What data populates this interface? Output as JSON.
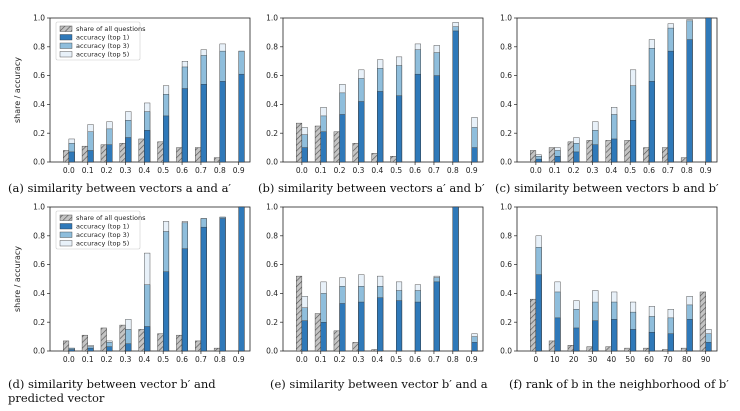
{
  "legend_labels": [
    "share of all questions",
    "accuracy (top 1)",
    "accuracy (top 3)",
    "accuracy (top 5)"
  ],
  "colors": {
    "share": "#bdbdbd",
    "top1": "#2f79b9",
    "top3": "#8fbedc",
    "top5": "#e8f1f9",
    "edge": "#333333"
  },
  "chart_data": [
    {
      "type": "bar",
      "caption": "(a) similarity between vectors a and a′",
      "ylabel": "share / accuracy",
      "categories": [
        "0.0",
        "0.1",
        "0.2",
        "0.3",
        "0.4",
        "0.5",
        "0.6",
        "0.7",
        "0.8",
        "0.9"
      ],
      "ylim": [
        0,
        1.0
      ],
      "yticks": [
        "0.0",
        "0.2",
        "0.4",
        "0.6",
        "0.8",
        "1.0"
      ],
      "series": [
        {
          "name": "share of all questions",
          "values": [
            0.08,
            0.11,
            0.12,
            0.13,
            0.16,
            0.14,
            0.1,
            0.1,
            0.03,
            0.0
          ]
        },
        {
          "name": "accuracy (top 1)",
          "values": [
            0.07,
            0.08,
            0.12,
            0.17,
            0.22,
            0.32,
            0.51,
            0.54,
            0.56,
            0.61
          ]
        },
        {
          "name": "accuracy (top 3)",
          "values": [
            0.13,
            0.21,
            0.23,
            0.29,
            0.35,
            0.47,
            0.66,
            0.74,
            0.77,
            0.77
          ]
        },
        {
          "name": "accuracy (top 5)",
          "values": [
            0.16,
            0.26,
            0.28,
            0.35,
            0.41,
            0.53,
            0.7,
            0.78,
            0.82,
            0.77
          ]
        }
      ]
    },
    {
      "type": "bar",
      "caption": "(b) similarity between vectors a′ and b′",
      "ylabel": "",
      "categories": [
        "0.0",
        "0.1",
        "0.2",
        "0.3",
        "0.4",
        "0.5",
        "0.6",
        "0.7",
        "0.8",
        "0.9"
      ],
      "ylim": [
        0,
        1.0
      ],
      "yticks": [
        "0.0",
        "0.2",
        "0.4",
        "0.6",
        "0.8",
        "1.0"
      ],
      "series": [
        {
          "name": "share of all questions",
          "values": [
            0.27,
            0.25,
            0.21,
            0.13,
            0.06,
            0.04,
            0.0,
            0.0,
            0.0,
            0.0
          ]
        },
        {
          "name": "accuracy (top 1)",
          "values": [
            0.1,
            0.21,
            0.33,
            0.42,
            0.49,
            0.46,
            0.61,
            0.6,
            0.91,
            0.1
          ]
        },
        {
          "name": "accuracy (top 3)",
          "values": [
            0.19,
            0.32,
            0.48,
            0.58,
            0.65,
            0.67,
            0.78,
            0.76,
            0.94,
            0.24
          ]
        },
        {
          "name": "accuracy (top 5)",
          "values": [
            0.24,
            0.38,
            0.54,
            0.64,
            0.71,
            0.73,
            0.82,
            0.81,
            0.97,
            0.31
          ]
        }
      ]
    },
    {
      "type": "bar",
      "caption": "(c) similarity between vectors b and b′",
      "ylabel": "",
      "categories": [
        "0.0",
        "0.1",
        "0.2",
        "0.3",
        "0.4",
        "0.5",
        "0.6",
        "0.7",
        "0.8",
        "0.9"
      ],
      "ylim": [
        0,
        1.0
      ],
      "yticks": [
        "0.0",
        "0.2",
        "0.4",
        "0.6",
        "0.8",
        "1.0"
      ],
      "series": [
        {
          "name": "share of all questions",
          "values": [
            0.08,
            0.1,
            0.14,
            0.15,
            0.15,
            0.15,
            0.1,
            0.1,
            0.03,
            0.0
          ]
        },
        {
          "name": "accuracy (top 1)",
          "values": [
            0.02,
            0.04,
            0.07,
            0.12,
            0.16,
            0.29,
            0.56,
            0.77,
            0.85,
            1.0
          ]
        },
        {
          "name": "accuracy (top 3)",
          "values": [
            0.04,
            0.08,
            0.13,
            0.22,
            0.33,
            0.53,
            0.79,
            0.93,
            0.98,
            1.0
          ]
        },
        {
          "name": "accuracy (top 5)",
          "values": [
            0.05,
            0.1,
            0.17,
            0.28,
            0.38,
            0.64,
            0.85,
            0.96,
            0.99,
            1.0
          ]
        }
      ]
    },
    {
      "type": "bar",
      "caption": "(d) similarity between vector b′ and predicted vector",
      "ylabel": "share / accuracy",
      "categories": [
        "0.0",
        "0.1",
        "0.2",
        "0.3",
        "0.4",
        "0.5",
        "0.6",
        "0.7",
        "0.8",
        "0.9"
      ],
      "ylim": [
        0,
        1.0
      ],
      "yticks": [
        "0.0",
        "0.2",
        "0.4",
        "0.6",
        "0.8",
        "1.0"
      ],
      "series": [
        {
          "name": "share of all questions",
          "values": [
            0.07,
            0.11,
            0.16,
            0.18,
            0.15,
            0.12,
            0.11,
            0.07,
            0.02,
            0.0
          ]
        },
        {
          "name": "accuracy (top 1)",
          "values": [
            0.01,
            0.02,
            0.03,
            0.05,
            0.17,
            0.55,
            0.71,
            0.86,
            0.92,
            1.0
          ]
        },
        {
          "name": "accuracy (top 3)",
          "values": [
            0.02,
            0.03,
            0.06,
            0.15,
            0.46,
            0.83,
            0.89,
            0.92,
            0.93,
            1.0
          ]
        },
        {
          "name": "accuracy (top 5)",
          "values": [
            0.02,
            0.04,
            0.07,
            0.22,
            0.68,
            0.9,
            0.9,
            0.92,
            0.93,
            1.0
          ]
        }
      ]
    },
    {
      "type": "bar",
      "caption": "(e) similarity between vector b′ and a",
      "ylabel": "",
      "categories": [
        "0.0",
        "0.1",
        "0.2",
        "0.3",
        "0.4",
        "0.5",
        "0.6",
        "0.7",
        "0.8",
        "0.9"
      ],
      "ylim": [
        0,
        1.0
      ],
      "yticks": [
        "0.0",
        "0.2",
        "0.4",
        "0.6",
        "0.8",
        "1.0"
      ],
      "series": [
        {
          "name": "share of all questions",
          "values": [
            0.52,
            0.26,
            0.14,
            0.06,
            0.01,
            0.0,
            0.0,
            0.0,
            0.0,
            0.0
          ]
        },
        {
          "name": "accuracy (top 1)",
          "values": [
            0.21,
            0.2,
            0.33,
            0.34,
            0.37,
            0.35,
            0.34,
            0.48,
            1.0,
            0.06
          ]
        },
        {
          "name": "accuracy (top 3)",
          "values": [
            0.3,
            0.4,
            0.45,
            0.45,
            0.45,
            0.42,
            0.42,
            0.51,
            1.0,
            0.1
          ]
        },
        {
          "name": "accuracy (top 5)",
          "values": [
            0.38,
            0.48,
            0.51,
            0.53,
            0.52,
            0.48,
            0.46,
            0.52,
            1.0,
            0.12
          ]
        }
      ]
    },
    {
      "type": "bar",
      "caption": "(f) rank of b in the neighborhood of b′",
      "ylabel": "",
      "categories": [
        "0",
        "10",
        "20",
        "30",
        "40",
        "50",
        "60",
        "70",
        "80",
        "90"
      ],
      "ylim": [
        0,
        1.0
      ],
      "yticks": [
        "0.0",
        "0.2",
        "0.4",
        "0.6",
        "0.8",
        "1.0"
      ],
      "series": [
        {
          "name": "share of all questions",
          "values": [
            0.36,
            0.07,
            0.04,
            0.03,
            0.03,
            0.02,
            0.02,
            0.01,
            0.02,
            0.41
          ]
        },
        {
          "name": "accuracy (top 1)",
          "values": [
            0.53,
            0.23,
            0.16,
            0.21,
            0.22,
            0.15,
            0.13,
            0.12,
            0.22,
            0.06
          ]
        },
        {
          "name": "accuracy (top 3)",
          "values": [
            0.72,
            0.41,
            0.29,
            0.34,
            0.34,
            0.27,
            0.24,
            0.23,
            0.32,
            0.12
          ]
        },
        {
          "name": "accuracy (top 5)",
          "values": [
            0.8,
            0.48,
            0.35,
            0.42,
            0.41,
            0.34,
            0.31,
            0.29,
            0.38,
            0.15
          ]
        }
      ]
    }
  ]
}
